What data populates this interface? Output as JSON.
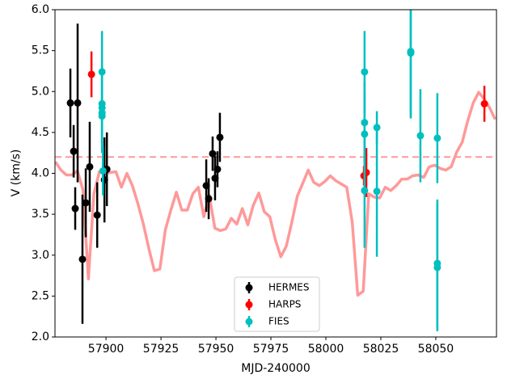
{
  "chart_data": {
    "type": "errorbar",
    "x_label": "MJD-240000",
    "y_label": "V (km/s)",
    "xlim": [
      57876.8,
      58077.6
    ],
    "ylim": [
      2.0,
      6.0
    ],
    "xticks": [
      57900,
      57925,
      57950,
      57975,
      58000,
      58025,
      58050
    ],
    "yticks": [
      {
        "value": 2.0,
        "label": "2.0"
      },
      {
        "value": 2.5,
        "label": "2.5"
      },
      {
        "value": 3.0,
        "label": "3.0"
      },
      {
        "value": 3.5,
        "label": "3.5"
      },
      {
        "value": 4.0,
        "label": "4.0"
      },
      {
        "value": 4.5,
        "label": "4.5"
      },
      {
        "value": 5.0,
        "label": "5.0"
      },
      {
        "value": 5.5,
        "label": "5.5"
      },
      {
        "value": 6.0,
        "label": "6.0"
      }
    ],
    "legend_position": "lower center",
    "reference_line": {
      "value": 4.2,
      "color": "#ff9999"
    },
    "model": {
      "color": "#ff9999",
      "x": [
        57877,
        57879.5,
        57882,
        57884.5,
        57887,
        57889.5,
        57892,
        57894.5,
        57897,
        57899.5,
        57902,
        57904.5,
        57907,
        57909.5,
        57912,
        57914.5,
        57917,
        57919.5,
        57922,
        57924.5,
        57927,
        57929.5,
        57932,
        57934.5,
        57937,
        57939.5,
        57942,
        57944.5,
        57947,
        57949.5,
        57952,
        57954.5,
        57957,
        57959.5,
        57962,
        57964.5,
        57967,
        57969.5,
        57972,
        57974.5,
        57977,
        57979.5,
        57982,
        57984.5,
        57987,
        57989.5,
        57992,
        57994.5,
        57997,
        57999.5,
        58002,
        58004.5,
        58007,
        58009.5,
        58012,
        58014.5,
        58017,
        58019.5,
        58022,
        58024.5,
        58027,
        58029.5,
        58032,
        58034.5,
        58037,
        58039.5,
        58042,
        58044.5,
        58047,
        58049.5,
        58052,
        58054.5,
        58057,
        58059.5,
        58062,
        58064.5,
        58067,
        58069.5,
        58072,
        58074.5,
        58077
      ],
      "values": [
        4.14,
        4.04,
        3.98,
        3.98,
        4.03,
        3.8,
        2.71,
        3.75,
        4.02,
        4.0,
        4.01,
        4.02,
        3.83,
        4.0,
        3.85,
        3.63,
        3.38,
        3.08,
        2.81,
        2.83,
        3.31,
        3.55,
        3.77,
        3.55,
        3.55,
        3.75,
        3.83,
        3.47,
        3.73,
        3.33,
        3.3,
        3.32,
        3.45,
        3.38,
        3.57,
        3.37,
        3.61,
        3.76,
        3.53,
        3.47,
        3.19,
        2.98,
        3.11,
        3.4,
        3.72,
        3.88,
        4.04,
        3.89,
        3.85,
        3.9,
        3.97,
        3.91,
        3.87,
        3.83,
        3.4,
        2.51,
        2.56,
        3.75,
        3.71,
        3.7,
        3.83,
        3.79,
        3.85,
        3.93,
        3.93,
        3.97,
        3.98,
        3.95,
        4.08,
        4.1,
        4.06,
        4.04,
        4.08,
        4.26,
        4.38,
        4.64,
        4.86,
        4.99,
        4.91,
        4.8,
        4.66
      ]
    },
    "series": [
      {
        "name": "HERMES",
        "color": "#000000",
        "x": [
          57883.8,
          57885.3,
          57886.0,
          57887.1,
          57889.3,
          57890.8,
          57892.6,
          57896.0,
          57899.3,
          57900.4,
          57945.6,
          57946.7,
          57948.5,
          57949.6,
          57950.7,
          57951.8
        ],
        "values": [
          4.86,
          4.27,
          3.57,
          4.86,
          2.95,
          3.64,
          4.08,
          3.49,
          3.92,
          4.05,
          3.85,
          3.69,
          4.24,
          3.94,
          4.05,
          4.44
        ],
        "errors": [
          0.42,
          0.32,
          0.26,
          0.97,
          0.79,
          0.42,
          0.55,
          0.4,
          0.52,
          0.45,
          0.32,
          0.25,
          0.21,
          0.27,
          0.22,
          0.3
        ]
      },
      {
        "name": "HARPS",
        "color": "#ff0000",
        "x": [
          57893.4,
          58017.3,
          58018.4,
          58072.1
        ],
        "values": [
          5.21,
          3.97,
          4.01,
          4.85
        ],
        "errors": [
          0.28,
          0.12,
          0.3,
          0.22
        ]
      },
      {
        "name": "FIES",
        "color": "#00bfbf",
        "x": [
          57898.2,
          57898.2,
          57898.2,
          57898.2,
          57898.2,
          57898.6,
          58017.6,
          58017.6,
          58017.6,
          58017.6,
          58023.2,
          58023.2,
          58038.6,
          58038.6,
          58043.0,
          58050.7,
          58050.7,
          58050.7
        ],
        "values": [
          5.24,
          4.85,
          4.8,
          4.74,
          4.7,
          4.03,
          5.24,
          4.62,
          4.48,
          3.79,
          4.56,
          3.78,
          5.49,
          5.47,
          4.46,
          4.43,
          2.9,
          2.85
        ],
        "errors": [
          0.5,
          0.48,
          0.45,
          0.45,
          0.45,
          0.3,
          0.5,
          0.5,
          0.5,
          0.7,
          0.2,
          0.8,
          0.8,
          0.8,
          0.57,
          0.55,
          0.78,
          0.78
        ]
      }
    ]
  }
}
